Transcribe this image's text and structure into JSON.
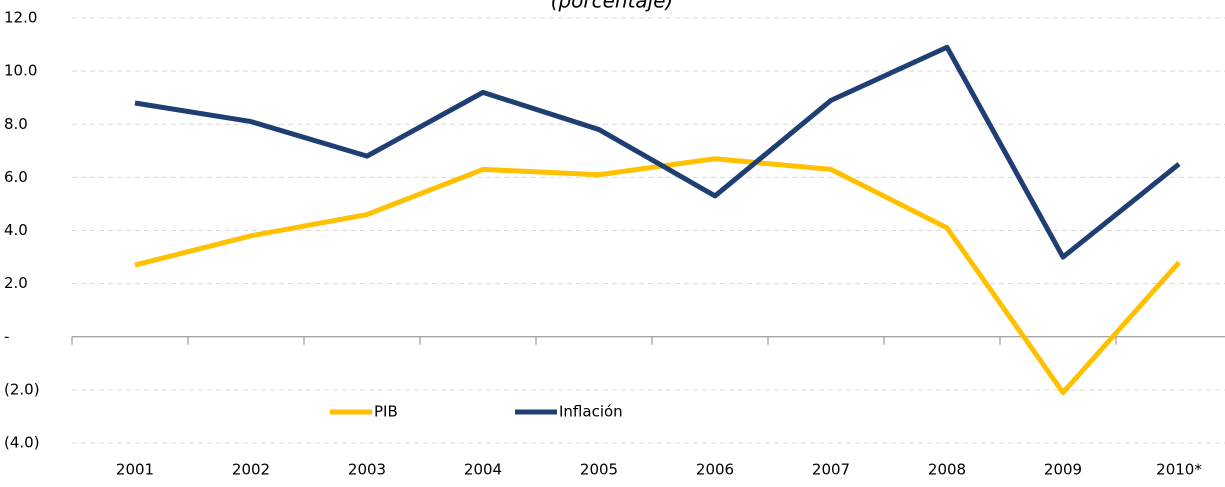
{
  "chart_data": {
    "type": "line",
    "subtitle": "(porcentaje)",
    "categories": [
      "2001",
      "2002",
      "2003",
      "2004",
      "2005",
      "2006",
      "2007",
      "2008",
      "2009",
      "2010*"
    ],
    "series": [
      {
        "name": "PIB",
        "color": "#FFC000",
        "values": [
          2.7,
          3.8,
          4.6,
          6.3,
          6.1,
          6.7,
          6.3,
          4.1,
          -2.1,
          2.8
        ]
      },
      {
        "name": "Inflación",
        "color": "#1F3F73",
        "values": [
          8.8,
          8.1,
          6.8,
          9.2,
          7.8,
          5.3,
          8.9,
          10.9,
          3.0,
          6.5
        ]
      }
    ],
    "ylim": [
      -4,
      12
    ],
    "yticks": [
      {
        "value": -4,
        "label": "(4.0)"
      },
      {
        "value": -2,
        "label": "(2.0)"
      },
      {
        "value": 0,
        "label": "-"
      },
      {
        "value": 2,
        "label": "2.0"
      },
      {
        "value": 4,
        "label": "4.0"
      },
      {
        "value": 6,
        "label": "6.0"
      },
      {
        "value": 8,
        "label": "8.0"
      },
      {
        "value": 10,
        "label": "10.0"
      },
      {
        "value": 12,
        "label": "12.0"
      }
    ],
    "grid": true,
    "legend": "bottom"
  }
}
